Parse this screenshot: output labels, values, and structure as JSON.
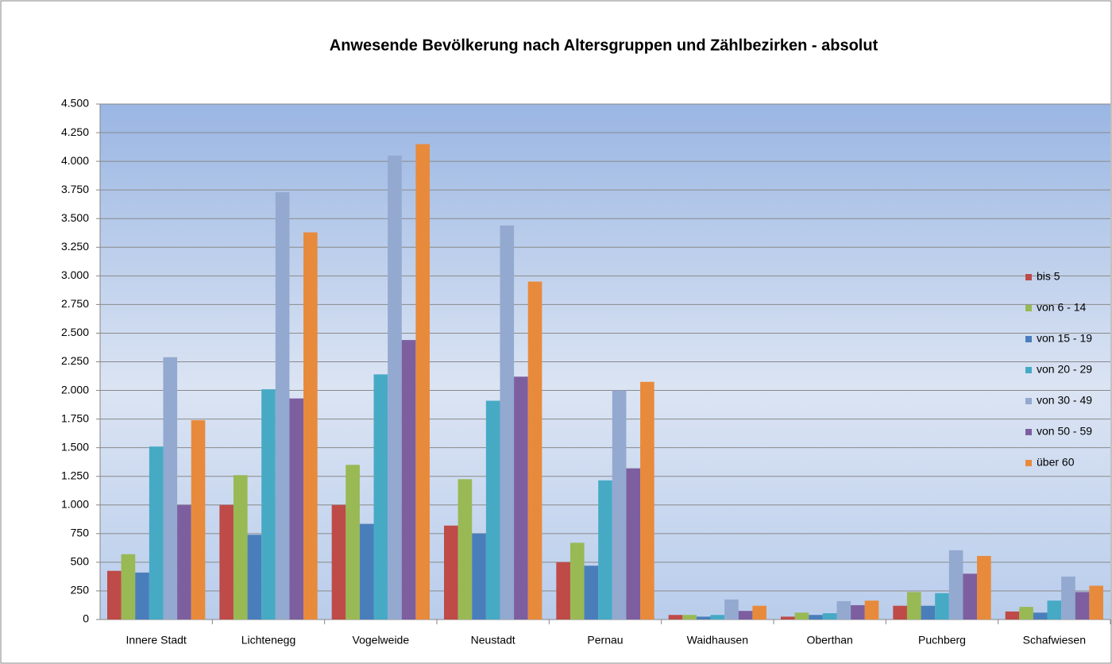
{
  "chart_data": {
    "type": "bar",
    "title": "Anwesende Bevölkerung nach Altersgruppen und Zählbezirken - absolut",
    "categories": [
      "Innere Stadt",
      "Lichtenegg",
      "Vogelweide",
      "Neustadt",
      "Pernau",
      "Waidhausen",
      "Oberthan",
      "Puchberg",
      "Schafwiesen"
    ],
    "series": [
      {
        "name": "bis 5",
        "color": "#be4b48",
        "values": [
          425,
          1000,
          1000,
          820,
          500,
          40,
          25,
          120,
          70
        ]
      },
      {
        "name": "von 6 - 14",
        "color": "#98b954",
        "values": [
          570,
          1260,
          1350,
          1225,
          670,
          40,
          60,
          240,
          110
        ]
      },
      {
        "name": "von 15 - 19",
        "color": "#4a7ebb",
        "values": [
          410,
          740,
          835,
          750,
          470,
          25,
          40,
          120,
          60
        ]
      },
      {
        "name": "von 20 - 29",
        "color": "#46aac5",
        "values": [
          1510,
          2010,
          2140,
          1910,
          1215,
          40,
          55,
          230,
          165
        ]
      },
      {
        "name": "von 30 - 49",
        "color": "#93a9cf",
        "values": [
          2290,
          3730,
          4050,
          3440,
          2000,
          175,
          160,
          605,
          375
        ]
      },
      {
        "name": "von 50 - 59",
        "color": "#7d5fa0",
        "values": [
          1000,
          1930,
          2440,
          2120,
          1320,
          75,
          125,
          400,
          240
        ]
      },
      {
        "name": "über 60",
        "color": "#e88a3c",
        "values": [
          1740,
          3380,
          4150,
          2950,
          2075,
          120,
          165,
          555,
          295
        ]
      }
    ],
    "ylim": [
      0,
      4500
    ],
    "yticks": [
      0,
      250,
      500,
      750,
      {
        "value": 1000,
        "label": "1.000"
      },
      {
        "value": 1250,
        "label": "1.250"
      },
      {
        "value": 1500,
        "label": "1.500"
      },
      {
        "value": 1750,
        "label": "1.750"
      },
      {
        "value": 2000,
        "label": "2.000"
      },
      {
        "value": 2250,
        "label": "2.250"
      },
      {
        "value": 2500,
        "label": "2.500"
      },
      {
        "value": 2750,
        "label": "2.750"
      },
      {
        "value": 3000,
        "label": "3.000"
      },
      {
        "value": 3250,
        "label": "3.250"
      },
      {
        "value": 3500,
        "label": "3.500"
      },
      {
        "value": 3750,
        "label": "3.750"
      },
      {
        "value": 4000,
        "label": "4.000"
      },
      {
        "value": 4250,
        "label": "4.250"
      },
      {
        "value": 4500,
        "label": "4.500"
      }
    ],
    "grid": true,
    "legend": "right"
  }
}
